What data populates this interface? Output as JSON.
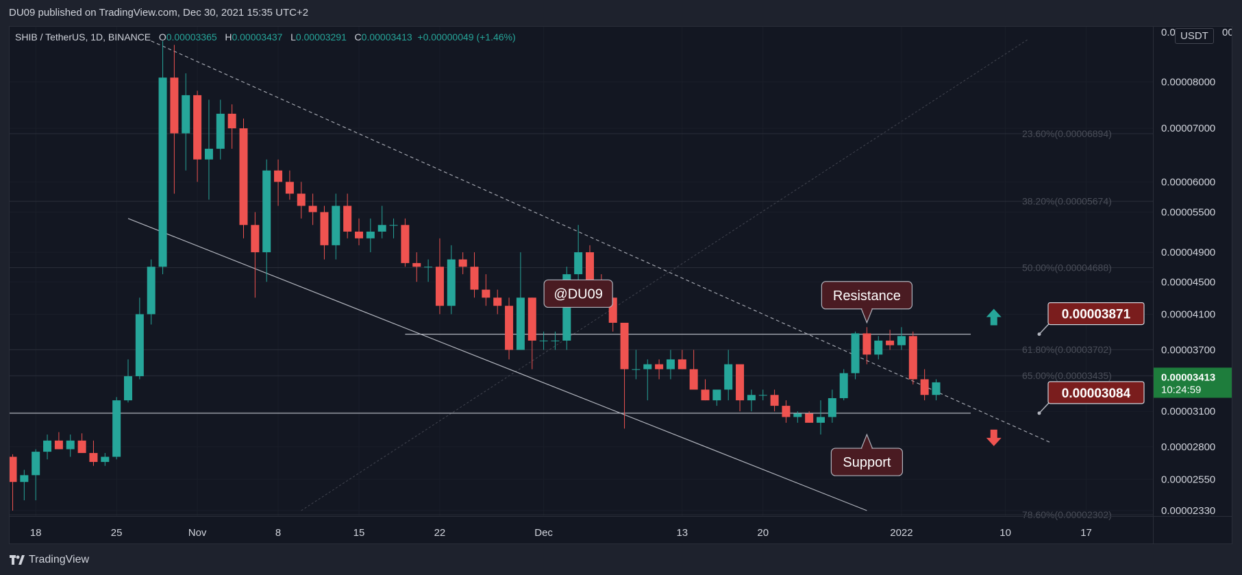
{
  "publisher_line": "DU09 published on TradingView.com, Dec 30, 2021 15:35 UTC+2",
  "legend": {
    "symbol": "SHIB / TetherUS, 1D, BINANCE",
    "o_key": "O",
    "o": "0.00003365",
    "h_key": "H",
    "h": "0.00003437",
    "l_key": "L",
    "l": "0.00003291",
    "c_key": "C",
    "c": "0.00003413",
    "change": "+0.00000049 (+1.46%)"
  },
  "currency_button": "USDT",
  "branding": "TradingView",
  "colors": {
    "up": "#26a69a",
    "down": "#ef5350",
    "background": "#131722",
    "annotation_bg": "#4a1b22",
    "price_label_bg": "#7a1d1d",
    "last_price_bg": "#1e7d3c"
  },
  "chart_data": {
    "type": "candlestick",
    "scale": "log",
    "y_range": [
      2.33e-05,
      9.23e-05
    ],
    "y_ticks": [
      "0.00008000",
      "0.00007000",
      "0.00006000",
      "0.00005500",
      "0.00004900",
      "0.00004500",
      "0.00004100",
      "0.00003700",
      "0.00003100",
      "0.00002800",
      "0.00002550",
      "0.00002330"
    ],
    "y_tick_partial_top": "0.0",
    "y_tick_partial_top_suffix": "00",
    "x_ticks": [
      "18",
      "25",
      "Nov",
      "8",
      "15",
      "22",
      "Dec",
      "13",
      "20",
      "2022",
      "10",
      "17"
    ],
    "x_start": "2021-10-16",
    "ohlc": [
      [
        2.72e-05,
        2.74e-05,
        2.33e-05,
        2.53e-05
      ],
      [
        2.53e-05,
        2.62e-05,
        2.4e-05,
        2.58e-05
      ],
      [
        2.58e-05,
        2.78e-05,
        2.4e-05,
        2.76e-05
      ],
      [
        2.76e-05,
        2.9e-05,
        2.7e-05,
        2.85e-05
      ],
      [
        2.85e-05,
        2.92e-05,
        2.78e-05,
        2.78e-05
      ],
      [
        2.78e-05,
        2.9e-05,
        2.72e-05,
        2.85e-05
      ],
      [
        2.85e-05,
        2.91e-05,
        2.75e-05,
        2.75e-05
      ],
      [
        2.75e-05,
        2.85e-05,
        2.65e-05,
        2.68e-05
      ],
      [
        2.68e-05,
        2.75e-05,
        2.65e-05,
        2.72e-05
      ],
      [
        2.72e-05,
        3.23e-05,
        2.7e-05,
        3.2e-05
      ],
      [
        3.2e-05,
        3.6e-05,
        3.18e-05,
        3.43e-05
      ],
      [
        3.43e-05,
        4.3e-05,
        3.4e-05,
        4.1e-05
      ],
      [
        4.1e-05,
        4.8e-05,
        3.98e-05,
        4.7e-05
      ],
      [
        4.7e-05,
        9e-05,
        4.6e-05,
        8.1e-05
      ],
      [
        8.1e-05,
        8.9e-05,
        5.8e-05,
        6.9e-05
      ],
      [
        6.9e-05,
        8.2e-05,
        6.2e-05,
        7.7e-05
      ],
      [
        7.7e-05,
        7.8e-05,
        6e-05,
        6.4e-05
      ],
      [
        6.4e-05,
        7.6e-05,
        5.7e-05,
        6.6e-05
      ],
      [
        6.6e-05,
        7.6e-05,
        6.4e-05,
        7.3e-05
      ],
      [
        7.3e-05,
        7.5e-05,
        6.6e-05,
        7e-05
      ],
      [
        7e-05,
        7.2e-05,
        5.1e-05,
        5.3e-05
      ],
      [
        5.3e-05,
        5.5e-05,
        4.3e-05,
        4.9e-05
      ],
      [
        4.9e-05,
        6.4e-05,
        4.5e-05,
        6.2e-05
      ],
      [
        6.2e-05,
        6.4e-05,
        5.6e-05,
        6e-05
      ],
      [
        6e-05,
        6.2e-05,
        5.7e-05,
        5.8e-05
      ],
      [
        5.8e-05,
        6e-05,
        5.4e-05,
        5.6e-05
      ],
      [
        5.6e-05,
        5.8e-05,
        5.3e-05,
        5.5e-05
      ],
      [
        5.5e-05,
        5.6e-05,
        4.8e-05,
        5e-05
      ],
      [
        5e-05,
        5.8e-05,
        4.8e-05,
        5.6e-05
      ],
      [
        5.6e-05,
        5.8e-05,
        5.1e-05,
        5.2e-05
      ],
      [
        5.2e-05,
        5.4e-05,
        5e-05,
        5.1e-05
      ],
      [
        5.1e-05,
        5.4e-05,
        4.9e-05,
        5.2e-05
      ],
      [
        5.2e-05,
        5.6e-05,
        5.1e-05,
        5.3e-05
      ],
      [
        5.3e-05,
        5.4e-05,
        5.1e-05,
        5.3e-05
      ],
      [
        5.3e-05,
        5.4e-05,
        4.7e-05,
        4.75e-05
      ],
      [
        4.75e-05,
        4.9e-05,
        4.5e-05,
        4.7e-05
      ],
      [
        4.7e-05,
        4.8e-05,
        4.5e-05,
        4.7e-05
      ],
      [
        4.7e-05,
        5.1e-05,
        4.1e-05,
        4.2e-05
      ],
      [
        4.2e-05,
        5e-05,
        4.1e-05,
        4.8e-05
      ],
      [
        4.8e-05,
        4.9e-05,
        4.6e-05,
        4.7e-05
      ],
      [
        4.7e-05,
        4.9e-05,
        4.3e-05,
        4.4e-05
      ],
      [
        4.4e-05,
        4.6e-05,
        4.2e-05,
        4.3e-05
      ],
      [
        4.3e-05,
        4.4e-05,
        4.1e-05,
        4.2e-05
      ],
      [
        4.2e-05,
        4.3e-05,
        3.6e-05,
        3.7e-05
      ],
      [
        3.7e-05,
        4.9e-05,
        3.7e-05,
        4.3e-05
      ],
      [
        4.3e-05,
        4.3e-05,
        3.5e-05,
        3.8e-05
      ],
      [
        3.8e-05,
        3.9e-05,
        3.7e-05,
        3.8e-05
      ],
      [
        3.8e-05,
        3.9e-05,
        3.7e-05,
        3.8e-05
      ],
      [
        3.8e-05,
        4.7e-05,
        3.7e-05,
        4.6e-05
      ],
      [
        4.6e-05,
        5.3e-05,
        4.4e-05,
        4.9e-05
      ],
      [
        4.9e-05,
        5e-05,
        4.4e-05,
        4.5e-05
      ],
      [
        4.5e-05,
        4.6e-05,
        4.2e-05,
        4.3e-05
      ],
      [
        4.3e-05,
        4.3e-05,
        3.9e-05,
        4e-05
      ],
      [
        4e-05,
        4e-05,
        2.95e-05,
        3.5e-05
      ],
      [
        3.5e-05,
        3.7e-05,
        3.4e-05,
        3.5e-05
      ],
      [
        3.5e-05,
        3.6e-05,
        3.2e-05,
        3.55e-05
      ],
      [
        3.55e-05,
        3.6e-05,
        3.4e-05,
        3.5e-05
      ],
      [
        3.5e-05,
        3.7e-05,
        3.4e-05,
        3.6e-05
      ],
      [
        3.6e-05,
        3.7e-05,
        3.5e-05,
        3.5e-05
      ],
      [
        3.5e-05,
        3.7e-05,
        3.3e-05,
        3.3e-05
      ],
      [
        3.3e-05,
        3.4e-05,
        3.2e-05,
        3.2e-05
      ],
      [
        3.2e-05,
        3.3e-05,
        3.15e-05,
        3.3e-05
      ],
      [
        3.3e-05,
        3.7e-05,
        3.2e-05,
        3.55e-05
      ],
      [
        3.55e-05,
        3.55e-05,
        3.1e-05,
        3.2e-05
      ],
      [
        3.2e-05,
        3.3e-05,
        3.1e-05,
        3.25e-05
      ],
      [
        3.25e-05,
        3.3e-05,
        3.2e-05,
        3.25e-05
      ],
      [
        3.25e-05,
        3.3e-05,
        3.1e-05,
        3.15e-05
      ],
      [
        3.15e-05,
        3.2e-05,
        3e-05,
        3.05e-05
      ],
      [
        3.05e-05,
        3.1e-05,
        3e-05,
        3.08e-05
      ],
      [
        3.08e-05,
        3.1e-05,
        3e-05,
        3e-05
      ],
      [
        3e-05,
        3.2e-05,
        2.9e-05,
        3.05e-05
      ],
      [
        3.05e-05,
        3.3e-05,
        3e-05,
        3.22e-05
      ],
      [
        3.22e-05,
        3.5e-05,
        3.2e-05,
        3.46e-05
      ],
      [
        3.46e-05,
        3.9e-05,
        3.4e-05,
        3.88e-05
      ],
      [
        3.88e-05,
        3.95e-05,
        3.55e-05,
        3.65e-05
      ],
      [
        3.65e-05,
        3.85e-05,
        3.6e-05,
        3.8e-05
      ],
      [
        3.8e-05,
        3.92e-05,
        3.7e-05,
        3.75e-05
      ],
      [
        3.75e-05,
        3.95e-05,
        3.7e-05,
        3.85e-05
      ],
      [
        3.85e-05,
        3.9e-05,
        3.35e-05,
        3.4e-05
      ],
      [
        3.4e-05,
        3.5e-05,
        3.2e-05,
        3.25e-05
      ],
      [
        3.25e-05,
        3.4e-05,
        3.2e-05,
        3.37e-05
      ]
    ],
    "trendline_upper": {
      "from": [
        "2021-10-28",
        9e-05
      ],
      "to": [
        "2022-01-14",
        2.83e-05
      ]
    },
    "trendline_lower": {
      "from": [
        "2021-10-26",
        5.4e-05
      ],
      "to": [
        "2021-12-29",
        2.33e-05
      ]
    },
    "fib_diagonal": {
      "from": [
        "2021-11-10",
        2.33e-05
      ],
      "to": [
        "2022-01-12",
        9.05e-05
      ]
    },
    "horizontal_levels": [
      3.871e-05,
      3.084e-05
    ],
    "fib_levels": [
      {
        "label": "23.60%(0.00006894)",
        "value": 6.894e-05
      },
      {
        "label": "38.20%(0.00005674)",
        "value": 5.674e-05
      },
      {
        "label": "50.00%(0.00004688)",
        "value": 4.688e-05
      },
      {
        "label": "61.80%(0.00003702)",
        "value": 3.702e-05
      },
      {
        "label": "65.00%(0.00003435)",
        "value": 3.435e-05
      },
      {
        "label": "78.60%(0.00002302)",
        "value": 2.302e-05
      }
    ],
    "annotations": [
      {
        "text": "@DU09",
        "anchor": "2021-12-04",
        "value": 4.35e-05
      },
      {
        "text": "Resistance",
        "anchor": "2021-12-29",
        "value": 4.33e-05
      },
      {
        "text": "Support",
        "anchor": "2021-12-29",
        "value": 2.68e-05
      }
    ],
    "price_labels": [
      {
        "text": "0.00003871",
        "value": 3.871e-05
      },
      {
        "text": "0.00003084",
        "value": 3.084e-05
      }
    ],
    "last_price": {
      "value": "0.00003413",
      "countdown": "10:24:59"
    },
    "arrows": [
      {
        "direction": "up",
        "color": "#26a69a"
      },
      {
        "direction": "down",
        "color": "#ef5350"
      }
    ]
  }
}
